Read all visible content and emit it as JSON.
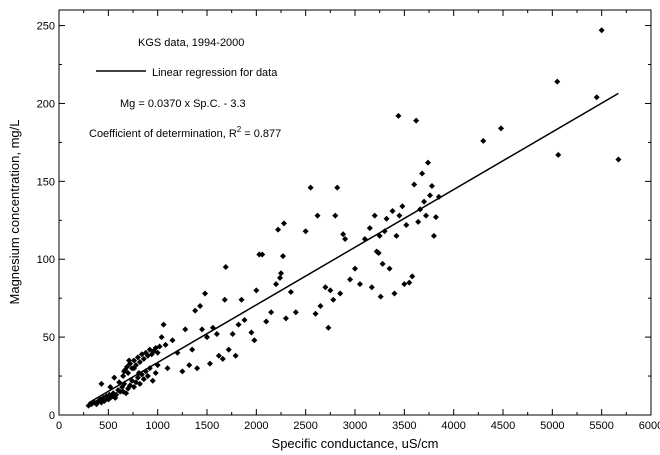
{
  "chart_data": {
    "type": "scatter",
    "xlabel": "Specific conductance, uS/cm",
    "ylabel": "Magnesium concentration, mg/L",
    "xlim": [
      0,
      6000
    ],
    "ylim": [
      0,
      260
    ],
    "x_ticks": [
      0,
      500,
      1000,
      1500,
      2000,
      2500,
      3000,
      3500,
      4000,
      4500,
      5000,
      5500,
      6000
    ],
    "x_tick_labels": [
      "0",
      "500",
      "1000",
      "1500",
      "2000",
      "2500",
      "3000",
      "3500",
      "4000",
      "4500",
      "5000",
      "5500",
      "6000"
    ],
    "y_ticks": [
      0,
      50,
      100,
      150,
      200,
      250
    ],
    "y_tick_labels": [
      "0",
      "50",
      "100",
      "150",
      "200",
      "250"
    ],
    "grid": false,
    "annotations": {
      "data_label": "KGS data, 1994-2000",
      "legend_line_label": "Linear regression for data",
      "equation": "Mg = 0.0370 x Sp.C. - 3.3",
      "r2_prefix": "Coefficient of determination, R",
      "r2_sup": "2",
      "r2_suffix": " = 0.877"
    },
    "regression": {
      "slope": 0.037,
      "intercept": -3.3,
      "x_range": [
        300,
        5670
      ]
    },
    "points": [
      [
        300,
        6
      ],
      [
        330,
        7
      ],
      [
        360,
        8
      ],
      [
        380,
        7
      ],
      [
        400,
        9
      ],
      [
        420,
        10
      ],
      [
        430,
        8
      ],
      [
        450,
        11
      ],
      [
        460,
        9
      ],
      [
        480,
        12
      ],
      [
        500,
        10
      ],
      [
        510,
        13
      ],
      [
        520,
        11
      ],
      [
        540,
        12
      ],
      [
        550,
        14
      ],
      [
        570,
        11
      ],
      [
        580,
        13
      ],
      [
        600,
        16
      ],
      [
        620,
        15
      ],
      [
        640,
        18
      ],
      [
        650,
        15
      ],
      [
        660,
        20
      ],
      [
        680,
        14
      ],
      [
        700,
        17
      ],
      [
        720,
        19
      ],
      [
        740,
        22
      ],
      [
        760,
        18
      ],
      [
        780,
        21
      ],
      [
        800,
        24
      ],
      [
        820,
        20
      ],
      [
        840,
        26
      ],
      [
        860,
        23
      ],
      [
        880,
        28
      ],
      [
        900,
        25
      ],
      [
        920,
        30
      ],
      [
        950,
        22
      ],
      [
        980,
        27
      ],
      [
        1000,
        32
      ],
      [
        650,
        25
      ],
      [
        670,
        29
      ],
      [
        690,
        31
      ],
      [
        700,
        27
      ],
      [
        720,
        33
      ],
      [
        740,
        30
      ],
      [
        760,
        35
      ],
      [
        780,
        32
      ],
      [
        800,
        37
      ],
      [
        820,
        34
      ],
      [
        840,
        39
      ],
      [
        860,
        36
      ],
      [
        880,
        40
      ],
      [
        900,
        38
      ],
      [
        920,
        42
      ],
      [
        940,
        39
      ],
      [
        960,
        41
      ],
      [
        980,
        43
      ],
      [
        1000,
        40
      ],
      [
        1020,
        44
      ],
      [
        430,
        20
      ],
      [
        520,
        18
      ],
      [
        560,
        24
      ],
      [
        610,
        21
      ],
      [
        660,
        28
      ],
      [
        710,
        35
      ],
      [
        760,
        30
      ],
      [
        810,
        27
      ],
      [
        1040,
        50
      ],
      [
        1060,
        58
      ],
      [
        1080,
        45
      ],
      [
        1100,
        30
      ],
      [
        1150,
        48
      ],
      [
        1200,
        40
      ],
      [
        1250,
        28
      ],
      [
        1280,
        55
      ],
      [
        1320,
        32
      ],
      [
        1350,
        42
      ],
      [
        1380,
        67
      ],
      [
        1400,
        30
      ],
      [
        1430,
        70
      ],
      [
        1450,
        55
      ],
      [
        1480,
        78
      ],
      [
        1500,
        50
      ],
      [
        1530,
        33
      ],
      [
        1560,
        56
      ],
      [
        1600,
        52
      ],
      [
        1620,
        38
      ],
      [
        1660,
        36
      ],
      [
        1680,
        74
      ],
      [
        1690,
        95
      ],
      [
        1720,
        42
      ],
      [
        1760,
        52
      ],
      [
        1790,
        38
      ],
      [
        1820,
        58
      ],
      [
        1850,
        74
      ],
      [
        1880,
        61
      ],
      [
        1950,
        53
      ],
      [
        1980,
        48
      ],
      [
        2000,
        80
      ],
      [
        2030,
        103
      ],
      [
        2060,
        103
      ],
      [
        2100,
        60
      ],
      [
        2150,
        66
      ],
      [
        2200,
        84
      ],
      [
        2220,
        119
      ],
      [
        2240,
        88
      ],
      [
        2250,
        91
      ],
      [
        2270,
        102
      ],
      [
        2280,
        123
      ],
      [
        2300,
        62
      ],
      [
        2350,
        79
      ],
      [
        2400,
        66
      ],
      [
        2500,
        118
      ],
      [
        2550,
        146
      ],
      [
        2600,
        65
      ],
      [
        2620,
        128
      ],
      [
        2650,
        70
      ],
      [
        2700,
        82
      ],
      [
        2730,
        56
      ],
      [
        2750,
        80
      ],
      [
        2780,
        74
      ],
      [
        2800,
        128
      ],
      [
        2820,
        146
      ],
      [
        2850,
        78
      ],
      [
        2880,
        116
      ],
      [
        2900,
        113
      ],
      [
        2950,
        87
      ],
      [
        3000,
        94
      ],
      [
        3050,
        84
      ],
      [
        3100,
        113
      ],
      [
        3150,
        120
      ],
      [
        3170,
        82
      ],
      [
        3200,
        128
      ],
      [
        3220,
        105
      ],
      [
        3240,
        104
      ],
      [
        3250,
        115
      ],
      [
        3260,
        76
      ],
      [
        3280,
        97
      ],
      [
        3300,
        118
      ],
      [
        3320,
        126
      ],
      [
        3350,
        94
      ],
      [
        3380,
        131
      ],
      [
        3400,
        78
      ],
      [
        3420,
        115
      ],
      [
        3440,
        192
      ],
      [
        3450,
        128
      ],
      [
        3480,
        134
      ],
      [
        3500,
        84
      ],
      [
        3520,
        122
      ],
      [
        3550,
        85
      ],
      [
        3580,
        89
      ],
      [
        3600,
        148
      ],
      [
        3620,
        189
      ],
      [
        3640,
        124
      ],
      [
        3660,
        132
      ],
      [
        3680,
        155
      ],
      [
        3700,
        137
      ],
      [
        3720,
        128
      ],
      [
        3740,
        162
      ],
      [
        3760,
        141
      ],
      [
        3780,
        147
      ],
      [
        3800,
        115
      ],
      [
        3820,
        127
      ],
      [
        3850,
        140
      ],
      [
        4300,
        176
      ],
      [
        4480,
        184
      ],
      [
        5050,
        214
      ],
      [
        5060,
        167
      ],
      [
        5450,
        204
      ],
      [
        5500,
        247
      ],
      [
        5670,
        164
      ]
    ]
  }
}
